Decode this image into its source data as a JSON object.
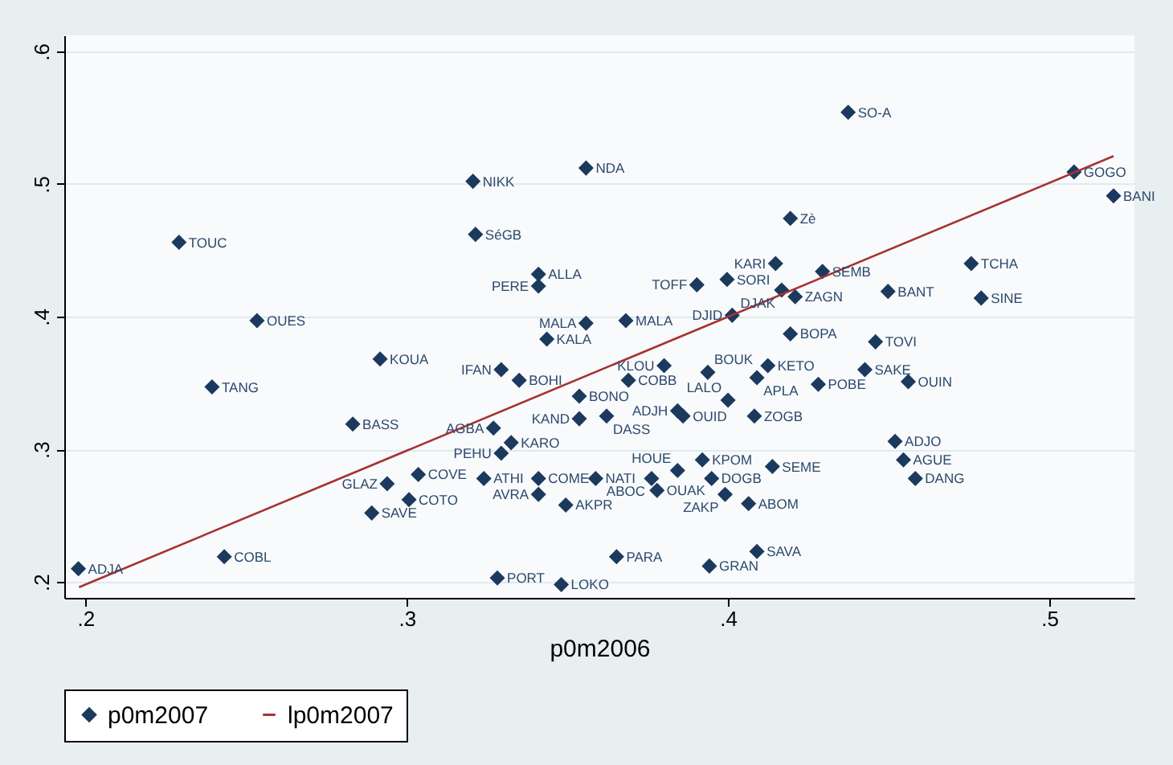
{
  "chart_data": {
    "type": "scatter",
    "xlabel": "p0m2006",
    "xlim": [
      0.1934,
      0.5265
    ],
    "ylim": [
      0.188,
      0.612
    ],
    "xticks": [
      {
        "value": 0.2,
        "label": ".2"
      },
      {
        "value": 0.3,
        "label": ".3"
      },
      {
        "value": 0.4,
        "label": ".4"
      },
      {
        "value": 0.5,
        "label": ".5"
      }
    ],
    "yticks": [
      {
        "value": 0.2,
        "label": ".2"
      },
      {
        "value": 0.3,
        "label": ".3"
      },
      {
        "value": 0.4,
        "label": ".4"
      },
      {
        "value": 0.5,
        "label": ".5"
      },
      {
        "value": 0.6,
        "label": ".6"
      }
    ],
    "grid": "y",
    "legend": "bottom",
    "marker": "diamond",
    "line_style": "solid",
    "series": [
      {
        "name": "p0m2007",
        "color": "#1b3a5e",
        "x": [
          0.3206,
          0.3558,
          0.2291,
          0.3214,
          0.341,
          0.341,
          0.2534,
          0.3558,
          0.3436,
          0.4374,
          0.5077,
          0.52,
          0.4194,
          0.4148,
          0.4294,
          0.3903,
          0.3997,
          0.4167,
          0.4209,
          0.4498,
          0.4757,
          0.4788,
          0.3682,
          0.4013,
          0.4194,
          0.4459,
          0.3801,
          0.3937,
          0.4124,
          0.409,
          0.4281,
          0.4426,
          0.4561,
          0.369,
          0.3537,
          0.4,
          0.3843,
          0.386,
          0.3622,
          0.3537,
          0.4082,
          0.452,
          0.4546,
          0.4583,
          0.392,
          0.3843,
          0.4138,
          0.3588,
          0.3762,
          0.3949,
          0.3779,
          0.3991,
          0.4064,
          0.409,
          0.3653,
          0.3942,
          0.2917,
          0.2394,
          0.3294,
          0.335,
          0.2832,
          0.327,
          0.3325,
          0.3294,
          0.3036,
          0.2939,
          0.324,
          0.341,
          0.341,
          0.3495,
          0.3007,
          0.2891,
          0.2432,
          0.1978,
          0.3282,
          0.3481
        ],
        "values": [
          0.502,
          0.512,
          0.456,
          0.462,
          0.432,
          0.423,
          0.397,
          0.395,
          0.383,
          0.554,
          0.509,
          0.491,
          0.474,
          0.44,
          0.434,
          0.424,
          0.428,
          0.42,
          0.415,
          0.419,
          0.44,
          0.414,
          0.397,
          0.401,
          0.387,
          0.381,
          0.363,
          0.358,
          0.363,
          0.354,
          0.349,
          0.36,
          0.351,
          0.352,
          0.34,
          0.337,
          0.329,
          0.325,
          0.325,
          0.323,
          0.325,
          0.306,
          0.292,
          0.278,
          0.292,
          0.284,
          0.287,
          0.278,
          0.278,
          0.278,
          0.269,
          0.266,
          0.259,
          0.223,
          0.219,
          0.212,
          0.368,
          0.347,
          0.36,
          0.352,
          0.319,
          0.316,
          0.305,
          0.297,
          0.281,
          0.274,
          0.278,
          0.278,
          0.266,
          0.258,
          0.262,
          0.252,
          0.219,
          0.21,
          0.203,
          0.198
        ]
      },
      {
        "name": "lp0m2007",
        "type": "line",
        "marker": "none",
        "color": "#a83232",
        "x": [
          0.198,
          0.52
        ],
        "values": [
          0.196,
          0.521
        ]
      }
    ],
    "annotations": [
      {
        "text": "NIKK",
        "x": 0.3206,
        "y": 0.502
      },
      {
        "text": "NDA",
        "x": 0.3558,
        "y": 0.512
      },
      {
        "text": "TOUC",
        "x": 0.2291,
        "y": 0.456
      },
      {
        "text": "SéGB",
        "x": 0.3214,
        "y": 0.462
      },
      {
        "text": "ALLA",
        "x": 0.341,
        "y": 0.432
      },
      {
        "text": "PERE",
        "x": 0.341,
        "y": 0.423
      },
      {
        "text": "OUES",
        "x": 0.2534,
        "y": 0.397
      },
      {
        "text": "MALA",
        "x": 0.3558,
        "y": 0.395
      },
      {
        "text": "KALA",
        "x": 0.3436,
        "y": 0.383
      },
      {
        "text": "SO-A",
        "x": 0.4374,
        "y": 0.554
      },
      {
        "text": "GOGO",
        "x": 0.5077,
        "y": 0.509
      },
      {
        "text": "BANI",
        "x": 0.52,
        "y": 0.491
      },
      {
        "text": "Zè",
        "x": 0.4194,
        "y": 0.474
      },
      {
        "text": "KARI",
        "x": 0.4148,
        "y": 0.44
      },
      {
        "text": "SEMB",
        "x": 0.4294,
        "y": 0.434
      },
      {
        "text": "TOFF",
        "x": 0.3903,
        "y": 0.424
      },
      {
        "text": "SORI",
        "x": 0.3997,
        "y": 0.428
      },
      {
        "text": "DJAK",
        "x": 0.4167,
        "y": 0.42
      },
      {
        "text": "ZAGN",
        "x": 0.4209,
        "y": 0.415
      },
      {
        "text": "BANT",
        "x": 0.4498,
        "y": 0.419
      },
      {
        "text": "TCHA",
        "x": 0.4757,
        "y": 0.44
      },
      {
        "text": "SINE",
        "x": 0.4788,
        "y": 0.414
      },
      {
        "text": "MALA",
        "x": 0.3682,
        "y": 0.397
      },
      {
        "text": "DJID",
        "x": 0.4013,
        "y": 0.401
      },
      {
        "text": "BOPA",
        "x": 0.4194,
        "y": 0.387
      },
      {
        "text": "TOVI",
        "x": 0.4459,
        "y": 0.381
      },
      {
        "text": "KLOU",
        "x": 0.3801,
        "y": 0.363
      },
      {
        "text": "BOUK",
        "x": 0.3937,
        "y": 0.358
      },
      {
        "text": "KETO",
        "x": 0.4124,
        "y": 0.363
      },
      {
        "text": "APLA",
        "x": 0.409,
        "y": 0.354
      },
      {
        "text": "POBE",
        "x": 0.4281,
        "y": 0.349
      },
      {
        "text": "SAKE",
        "x": 0.4426,
        "y": 0.36
      },
      {
        "text": "OUIN",
        "x": 0.4561,
        "y": 0.351
      },
      {
        "text": "COBB",
        "x": 0.369,
        "y": 0.352
      },
      {
        "text": "BONO",
        "x": 0.3537,
        "y": 0.34
      },
      {
        "text": "LALO",
        "x": 0.4,
        "y": 0.337
      },
      {
        "text": "ADJH",
        "x": 0.3843,
        "y": 0.329
      },
      {
        "text": "OUID",
        "x": 0.386,
        "y": 0.325
      },
      {
        "text": "DASS",
        "x": 0.3622,
        "y": 0.325
      },
      {
        "text": "KAND",
        "x": 0.3537,
        "y": 0.323
      },
      {
        "text": "ZOGB",
        "x": 0.4082,
        "y": 0.325
      },
      {
        "text": "ADJO",
        "x": 0.452,
        "y": 0.306
      },
      {
        "text": "AGUE",
        "x": 0.4546,
        "y": 0.292
      },
      {
        "text": "DANG",
        "x": 0.4583,
        "y": 0.278
      },
      {
        "text": "KPOM",
        "x": 0.392,
        "y": 0.292
      },
      {
        "text": "HOUE",
        "x": 0.3843,
        "y": 0.284
      },
      {
        "text": "SEME",
        "x": 0.4138,
        "y": 0.287
      },
      {
        "text": "NATI",
        "x": 0.3588,
        "y": 0.278
      },
      {
        "text": "ABOC",
        "x": 0.3762,
        "y": 0.278
      },
      {
        "text": "DOGB",
        "x": 0.3949,
        "y": 0.278
      },
      {
        "text": "OUAK",
        "x": 0.3779,
        "y": 0.269
      },
      {
        "text": "ZAKP",
        "x": 0.3991,
        "y": 0.266
      },
      {
        "text": "ABOM",
        "x": 0.4064,
        "y": 0.259
      },
      {
        "text": "SAVA",
        "x": 0.409,
        "y": 0.223
      },
      {
        "text": "PARA",
        "x": 0.3653,
        "y": 0.219
      },
      {
        "text": "GRAN",
        "x": 0.3942,
        "y": 0.212
      },
      {
        "text": "KOUA",
        "x": 0.2917,
        "y": 0.368
      },
      {
        "text": "TANG",
        "x": 0.2394,
        "y": 0.347
      },
      {
        "text": "IFAN",
        "x": 0.3294,
        "y": 0.36
      },
      {
        "text": "BOHI",
        "x": 0.335,
        "y": 0.352
      },
      {
        "text": "BASS",
        "x": 0.2832,
        "y": 0.319
      },
      {
        "text": "AGBA",
        "x": 0.327,
        "y": 0.316
      },
      {
        "text": "KARO",
        "x": 0.3325,
        "y": 0.305
      },
      {
        "text": "PEHU",
        "x": 0.3294,
        "y": 0.297
      },
      {
        "text": "COVE",
        "x": 0.3036,
        "y": 0.281
      },
      {
        "text": "GLAZ",
        "x": 0.2939,
        "y": 0.274
      },
      {
        "text": "ATHI",
        "x": 0.324,
        "y": 0.278
      },
      {
        "text": "COME",
        "x": 0.341,
        "y": 0.278
      },
      {
        "text": "AVRA",
        "x": 0.341,
        "y": 0.266
      },
      {
        "text": "AKPR",
        "x": 0.3495,
        "y": 0.258
      },
      {
        "text": "COTO",
        "x": 0.3007,
        "y": 0.262
      },
      {
        "text": "SAVE",
        "x": 0.2891,
        "y": 0.252
      },
      {
        "text": "COBL",
        "x": 0.2432,
        "y": 0.219
      },
      {
        "text": "ADJA",
        "x": 0.1978,
        "y": 0.21
      },
      {
        "text": "PORT",
        "x": 0.3282,
        "y": 0.203
      },
      {
        "text": "LOKO",
        "x": 0.3481,
        "y": 0.198
      }
    ]
  }
}
